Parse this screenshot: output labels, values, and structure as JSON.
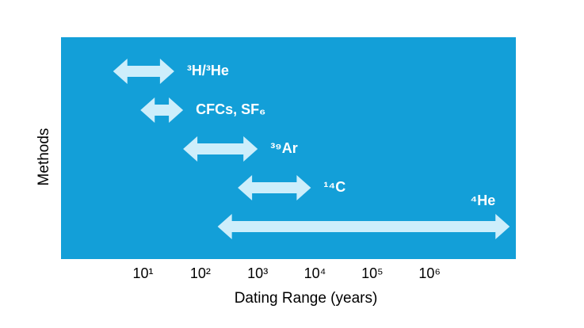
{
  "chart_data": {
    "type": "range",
    "xlabel": "Dating Range (years)",
    "ylabel": "Methods",
    "categories": [
      "³H/³He",
      "CFCs, SF₆",
      "³⁹Ar",
      "¹⁴C",
      "⁴He"
    ],
    "low": [
      3,
      9,
      50,
      450,
      200
    ],
    "high": [
      35,
      50,
      1000,
      8500,
      25000000
    ],
    "xscale": "log",
    "xlim": [
      0.37,
      32000000
    ],
    "xticks": [
      {
        "value": 10,
        "label": "10¹"
      },
      {
        "value": 100,
        "label": "10²"
      },
      {
        "value": 1000,
        "label": "10³"
      },
      {
        "value": 10000,
        "label": "10⁴"
      },
      {
        "value": 100000,
        "label": "10⁵"
      },
      {
        "value": 1000000,
        "label": "10⁶"
      }
    ],
    "background": "#139fd8",
    "color": "#cdeefb"
  }
}
